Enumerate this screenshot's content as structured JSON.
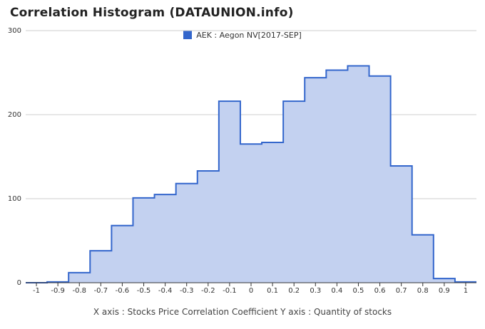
{
  "title": "Correlation Histogram (DATAUNION.info)",
  "legend_label": "AEK : Aegon NV[2017-SEP]",
  "axis_caption": "X axis : Stocks Price Correlation Coefficient   Y axis : Quantity of stocks",
  "colors": {
    "line": "#3366cc",
    "fill": "#c3d1f0",
    "grid": "#cccccc",
    "baseline": "#333333"
  },
  "chart_data": {
    "type": "area",
    "title": "Correlation Histogram (DATAUNION.info)",
    "xlabel": "Stocks Price Correlation Coefficient",
    "ylabel": "Quantity of stocks",
    "xlim": [
      -1.05,
      1.05
    ],
    "ylim": [
      0,
      300
    ],
    "x_ticks": [
      "-1",
      "-0.9",
      "-0.8",
      "-0.7",
      "-0.6",
      "-0.5",
      "-0.4",
      "-0.3",
      "-0.2",
      "-0.1",
      "0",
      "0.1",
      "0.2",
      "0.3",
      "0.4",
      "0.5",
      "0.6",
      "0.7",
      "0.8",
      "0.9",
      "1"
    ],
    "y_ticks": [
      "0",
      "100",
      "200",
      "300"
    ],
    "grid": true,
    "legend_position": "top",
    "series": [
      {
        "name": "AEK : Aegon NV[2017-SEP]",
        "x": [
          -1.0,
          -0.9,
          -0.8,
          -0.7,
          -0.6,
          -0.5,
          -0.4,
          -0.3,
          -0.2,
          -0.1,
          0.0,
          0.1,
          0.2,
          0.3,
          0.4,
          0.5,
          0.6,
          0.7,
          0.8,
          0.9,
          1.0
        ],
        "values": [
          0,
          1,
          12,
          38,
          68,
          101,
          105,
          118,
          133,
          216,
          165,
          167,
          216,
          244,
          253,
          258,
          246,
          139,
          57,
          5,
          1
        ]
      }
    ]
  }
}
